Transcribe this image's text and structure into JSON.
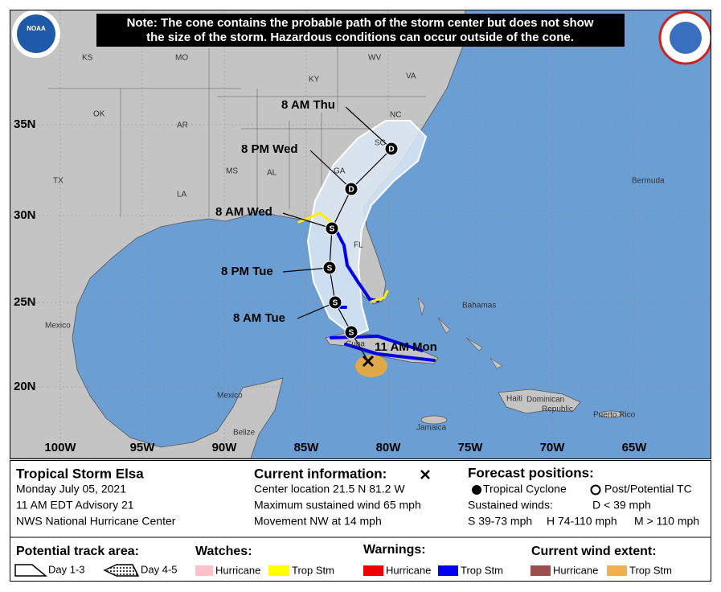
{
  "header": {
    "note": [
      "Note: The cone contains the probable path of the storm center but does not show",
      "the size of the storm. Hazardous conditions can occur outside of the cone."
    ],
    "noaa": "NOAA"
  },
  "map": {
    "lat_labels": [
      "35N",
      "30N",
      "25N",
      "20N"
    ],
    "lon_labels": [
      "100W",
      "95W",
      "90W",
      "85W",
      "80W",
      "75W",
      "70W",
      "65W"
    ],
    "places": [
      "KS",
      "MO",
      "WV",
      "VA",
      "KY",
      "NC",
      "OK",
      "AR",
      "SC",
      "MS",
      "AL",
      "GA",
      "TX",
      "LA",
      "FL",
      "Bermuda",
      "Bahamas",
      "Mexico",
      "Cuba",
      "Mexico",
      "Haiti",
      "Dominican",
      "Republic",
      "Puerto Rico",
      "Jamaica",
      "Belize"
    ],
    "forecast": [
      {
        "time": "8 AM Thu",
        "marker": "D"
      },
      {
        "time": "8 PM Wed",
        "marker": "D"
      },
      {
        "time": "8 AM Wed",
        "marker": "S"
      },
      {
        "time": "8 PM Tue",
        "marker": "S"
      },
      {
        "time": "8 AM Tue",
        "marker": "S"
      }
    ],
    "extra_marker": "S",
    "current_label": "11 AM Mon"
  },
  "storm": {
    "name": "Tropical Storm Elsa",
    "date": "Monday July 05, 2021",
    "advisory": "11 AM EDT Advisory 21",
    "source": "NWS National Hurricane Center"
  },
  "current": {
    "heading": "Current information:",
    "location": "Center location 21.5 N 81.2 W",
    "wind": "Maximum sustained wind 65 mph",
    "movement": "Movement NW at 14 mph"
  },
  "forecast_key": {
    "heading": "Forecast positions:",
    "tropical": "Tropical Cyclone",
    "post": "Post/Potential TC",
    "winds": "Sustained winds:",
    "d": "D < 39 mph",
    "s": "S 39-73 mph",
    "h": "H 74-110 mph",
    "m": "M > 110 mph"
  },
  "legend": {
    "track": {
      "heading": "Potential track area:",
      "day13": "Day 1-3",
      "day45": "Day 4-5"
    },
    "watches": {
      "heading": "Watches:",
      "hurricane": "Hurricane",
      "trop": "Trop Stm"
    },
    "warnings": {
      "heading": "Warnings:",
      "hurricane": "Hurricane",
      "trop": "Trop Stm"
    },
    "wind": {
      "heading": "Current wind extent:",
      "hurricane": "Hurricane",
      "trop": "Trop Stm"
    }
  }
}
